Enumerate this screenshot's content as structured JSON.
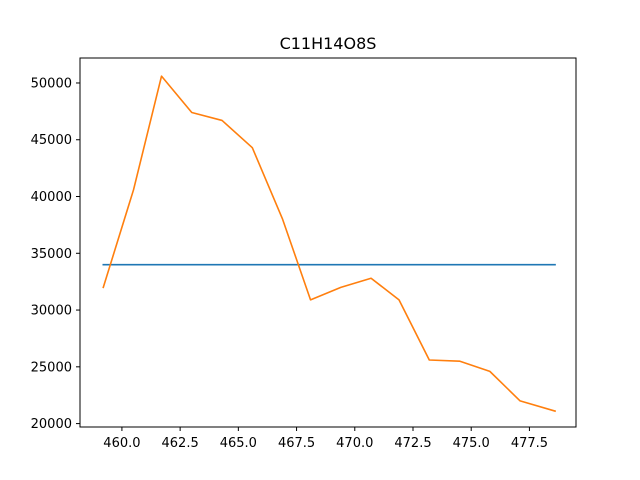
{
  "chart_data": {
    "type": "line",
    "title": "C11H14O8S",
    "xlabel": "",
    "ylabel": "",
    "xlim": [
      458.2,
      479.5
    ],
    "ylim": [
      19700,
      52200
    ],
    "x_ticks": [
      460.0,
      462.5,
      465.0,
      467.5,
      470.0,
      472.5,
      475.0,
      477.5
    ],
    "x_tick_labels": [
      "460.0",
      "462.5",
      "465.0",
      "467.5",
      "470.0",
      "472.5",
      "475.0",
      "477.5"
    ],
    "y_ticks": [
      20000,
      25000,
      30000,
      35000,
      40000,
      45000,
      50000
    ],
    "y_tick_labels": [
      "20000",
      "25000",
      "30000",
      "35000",
      "40000",
      "45000",
      "50000"
    ],
    "grid": false,
    "series": [
      {
        "color": "#1f77b4",
        "x": [
          459.2,
          478.6
        ],
        "y": [
          34000,
          34000
        ]
      },
      {
        "color": "#ff7f0e",
        "x": [
          459.2,
          460.5,
          461.7,
          463.0,
          464.3,
          465.6,
          466.9,
          468.1,
          469.4,
          470.7,
          471.9,
          473.2,
          474.5,
          475.8,
          477.1,
          478.6
        ],
        "y": [
          32000,
          40600,
          50600,
          47400,
          46700,
          44300,
          38000,
          30900,
          32000,
          32800,
          30900,
          25600,
          25500,
          24600,
          22000,
          21100
        ]
      }
    ]
  }
}
